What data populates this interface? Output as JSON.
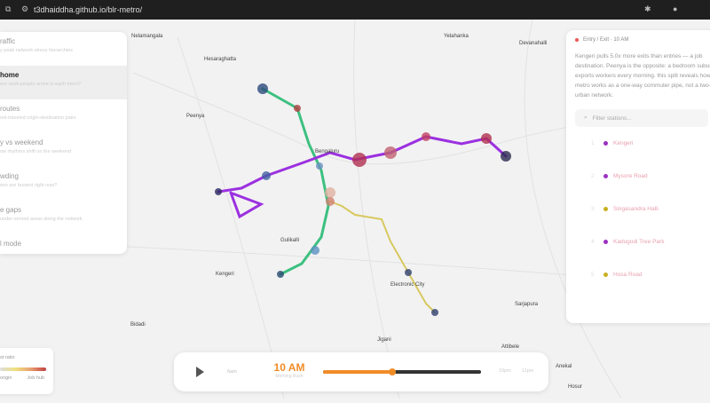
{
  "browser": {
    "url": "t3dhaiddha.github.io/blr-metro/"
  },
  "sidebar": {
    "items": [
      {
        "label": "raffic",
        "desc": "y peak network-stress hierarchies"
      },
      {
        "label": "home",
        "desc": "ere work-people arrive in each morn?",
        "selected": true
      },
      {
        "label": "routes",
        "desc": "ost-traveled origin-destination pairs"
      },
      {
        "label": "y vs weekend",
        "desc": "ow rhythms shift on the weekend"
      },
      {
        "label": "wding",
        "desc": "ons are busiest right now?"
      },
      {
        "label": "e gaps",
        "desc": "under-served areas along the network"
      },
      {
        "label": "l mode",
        "desc": ""
      }
    ]
  },
  "panel": {
    "header": "Entry / Exit · 10 AM",
    "summary": "Kengeri pulls 5.0x more exits than entries — a job destination. Peenya is the opposite: a bedroom suburb that exports workers every morning. this split reveals how the metro works as a one-way commuter pipe, not a two-way urban network.",
    "filter_placeholder": "Filter stations...",
    "stations": [
      {
        "rank": "1",
        "name": "Kengeri",
        "color": "#9b30c0"
      },
      {
        "rank": "2",
        "name": "Mysore Road",
        "color": "#9b30c0"
      },
      {
        "rank": "3",
        "name": "Singasandra Halli",
        "color": "#c8b020"
      },
      {
        "rank": "4",
        "name": "Kadugodi Tree Park",
        "color": "#9b30c0"
      },
      {
        "rank": "5",
        "name": "Hosa Road",
        "color": "#c8b020"
      }
    ]
  },
  "legend": {
    "title": "st ratio",
    "low": "origin",
    "high": "Job hub"
  },
  "timeline": {
    "start": "6am",
    "current": "10 AM",
    "period": "Morning Rush",
    "progress": 0.44,
    "end1": "10pm",
    "end2": "11pm"
  },
  "map": {
    "labels": [
      "Nelamangala",
      "Hesaraghatta",
      "Yelahanka",
      "Devanahalli",
      "Bengaluru",
      "Electronic City",
      "Kengeri",
      "Bidadi",
      "Anekal",
      "Hosur",
      "Attibele",
      "Sarjapura",
      "Jigani",
      "Gulikalli",
      "Peenya"
    ]
  }
}
